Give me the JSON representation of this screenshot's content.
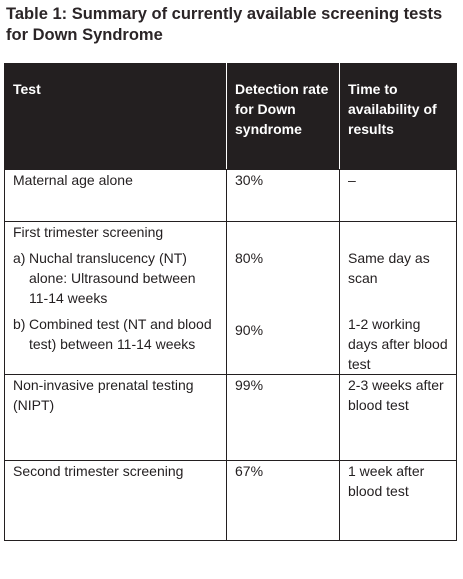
{
  "caption": {
    "line1": "Table 1: Summary of currently available screening tests",
    "line2": "for Down Syndrome"
  },
  "table": {
    "headers": {
      "test": "Test",
      "detection": "Detection rate for Down syndrome",
      "time": "Time to availability of results"
    },
    "rows": {
      "maternal_age": {
        "test": "Maternal age alone",
        "detection": "30%",
        "time": "–"
      },
      "first_trimester": {
        "title": "First trimester screening",
        "sub_a": {
          "mark": "a)",
          "test": "Nuchal translucency (NT) alone: Ultrasound between 11-14 weeks",
          "detection": "80%",
          "time": "Same day as scan"
        },
        "sub_b": {
          "mark": "b)",
          "test": "Combined test (NT and blood test) between 11-14 weeks",
          "detection": "90%",
          "time": "1-2 working days after blood test"
        }
      },
      "nipt": {
        "test": "Non-invasive prenatal testing (NIPT)",
        "detection": "99%",
        "time": "2-3 weeks after blood test"
      },
      "second_trimester": {
        "test": "Second trimester screening",
        "detection": "67%",
        "time": "1 week after blood test"
      }
    }
  }
}
